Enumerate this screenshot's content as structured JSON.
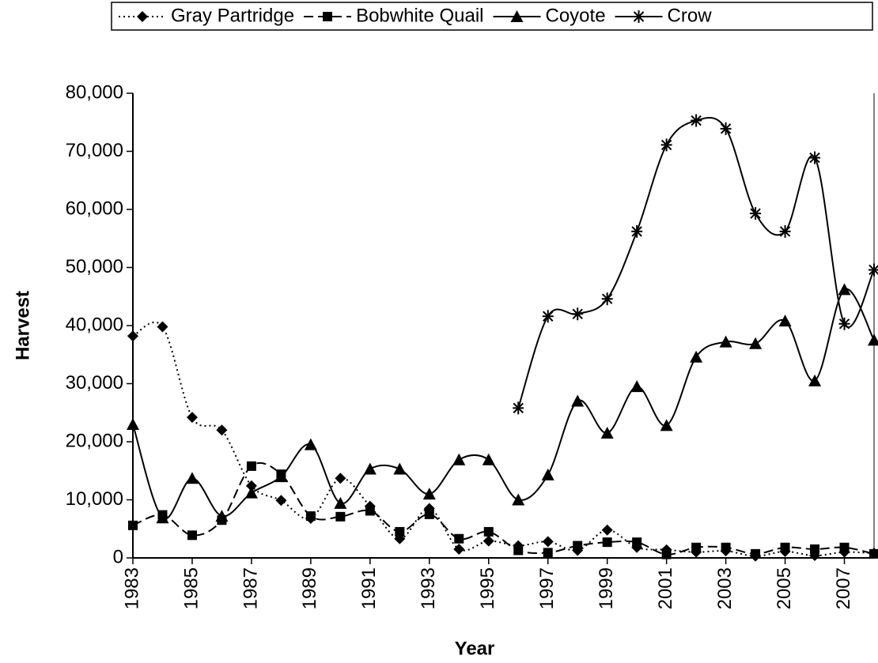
{
  "chart_data": {
    "type": "line",
    "xlabel": "Year",
    "ylabel": "Harvest",
    "x": [
      1983,
      1984,
      1985,
      1986,
      1987,
      1988,
      1989,
      1990,
      1991,
      1992,
      1993,
      1994,
      1995,
      1996,
      1997,
      1998,
      1999,
      2000,
      2001,
      2002,
      2003,
      2004,
      2005,
      2006,
      2007,
      2008
    ],
    "series": [
      {
        "name": "Gray Partridge",
        "color": "#000000",
        "dash": "2,4",
        "marker": "diamond",
        "values": [
          38200,
          39800,
          24200,
          22000,
          12400,
          9900,
          6800,
          13700,
          8900,
          3300,
          8500,
          1500,
          2900,
          2100,
          2800,
          1300,
          4800,
          1800,
          1400,
          1000,
          1200,
          300,
          1100,
          400,
          1000,
          800
        ]
      },
      {
        "name": "Bobwhite Quail",
        "color": "#000000",
        "dash": "12,6",
        "marker": "square",
        "values": [
          5600,
          7400,
          3900,
          6500,
          15800,
          14400,
          7200,
          7100,
          8100,
          4500,
          7500,
          3300,
          4500,
          1300,
          900,
          2100,
          2700,
          2700,
          600,
          1800,
          1800,
          700,
          1800,
          1500,
          1800,
          700
        ]
      },
      {
        "name": "Coyote",
        "color": "#000000",
        "dash": "none",
        "marker": "triangle",
        "values": [
          23000,
          6900,
          13700,
          7200,
          11200,
          14000,
          19500,
          9400,
          15300,
          15300,
          11000,
          16900,
          16900,
          10000,
          14300,
          27000,
          21500,
          29500,
          22800,
          34600,
          37200,
          36900,
          40800,
          30500,
          46200,
          37500
        ]
      },
      {
        "name": "Crow",
        "color": "#000000",
        "dash": "none",
        "marker": "asterisk",
        "values": [
          null,
          null,
          null,
          null,
          null,
          null,
          null,
          null,
          null,
          null,
          null,
          null,
          null,
          25800,
          41600,
          42000,
          44600,
          56200,
          71100,
          75300,
          73900,
          59300,
          56200,
          68900,
          40300,
          49600
        ]
      }
    ],
    "xlim": [
      1983,
      2008
    ],
    "xticks": [
      1983,
      1985,
      1987,
      1989,
      1991,
      1993,
      1995,
      1997,
      1999,
      2001,
      2003,
      2005,
      2007
    ],
    "ylim": [
      0,
      80000
    ],
    "yticks": [
      0,
      {
        "value": 10000,
        "label": "10,000"
      },
      {
        "value": 20000,
        "label": "20,000"
      },
      {
        "value": 30000,
        "label": "30,000"
      },
      {
        "value": 40000,
        "label": "40,000"
      },
      {
        "value": 50000,
        "label": "50,000"
      },
      {
        "value": 60000,
        "label": "60,000"
      },
      {
        "value": 70000,
        "label": "70,000"
      },
      {
        "value": 80000,
        "label": "80,000"
      }
    ],
    "grid": false,
    "legend": "top"
  }
}
